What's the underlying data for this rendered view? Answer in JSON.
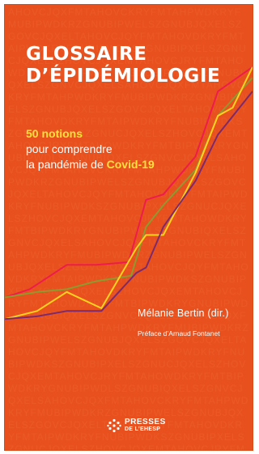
{
  "cover": {
    "background_color": "#e8511d",
    "title_line1": "GLOSSAIRE",
    "title_line2": "D’ÉPIDÉMIOLOGIE",
    "subtitle_highlight": "50 notions",
    "subtitle_line2": "pour comprendre",
    "subtitle_line3_prefix": "la pandémie de ",
    "subtitle_line3_highlight": "Covid-19",
    "author": "Mélanie Bertin (dir.)",
    "preface": "Préface d’Arnaud Fontanet",
    "publisher_line1": "PRESSES",
    "publisher_line2": "DE L’EHESP",
    "publisher_logo_icon": "dot-cluster-icon"
  },
  "chart_data": {
    "type": "line",
    "title": "",
    "xlabel": "",
    "ylabel": "",
    "xlim": [
      0,
      100
    ],
    "ylim": [
      0,
      100
    ],
    "grid": false,
    "legend": "none",
    "series": [
      {
        "color": "#ee1c4d",
        "x": [
          0,
          10,
          25,
          37,
          50,
          57,
          64,
          77,
          86,
          100
        ],
        "y": [
          10,
          13,
          22,
          22,
          23,
          46,
          48,
          62,
          86,
          95
        ]
      },
      {
        "color": "#8c9a2e",
        "x": [
          0,
          13,
          25,
          37,
          51,
          57,
          64,
          77,
          86,
          92,
          100
        ],
        "y": [
          10,
          12,
          13,
          16,
          18,
          36,
          44,
          57,
          77,
          83,
          91
        ]
      },
      {
        "color": "#ffd21e",
        "x": [
          0,
          13,
          25,
          39,
          53,
          57,
          64,
          77,
          86,
          92,
          100
        ],
        "y": [
          2,
          5,
          12,
          6,
          28,
          33,
          33,
          56,
          77,
          80,
          95
        ]
      },
      {
        "color": "#7b2a6f",
        "x": [
          0,
          13,
          25,
          39,
          53,
          57,
          64,
          77,
          86,
          100
        ],
        "y": [
          2,
          3,
          5,
          5,
          19,
          21,
          36,
          53,
          70,
          86
        ]
      }
    ]
  }
}
